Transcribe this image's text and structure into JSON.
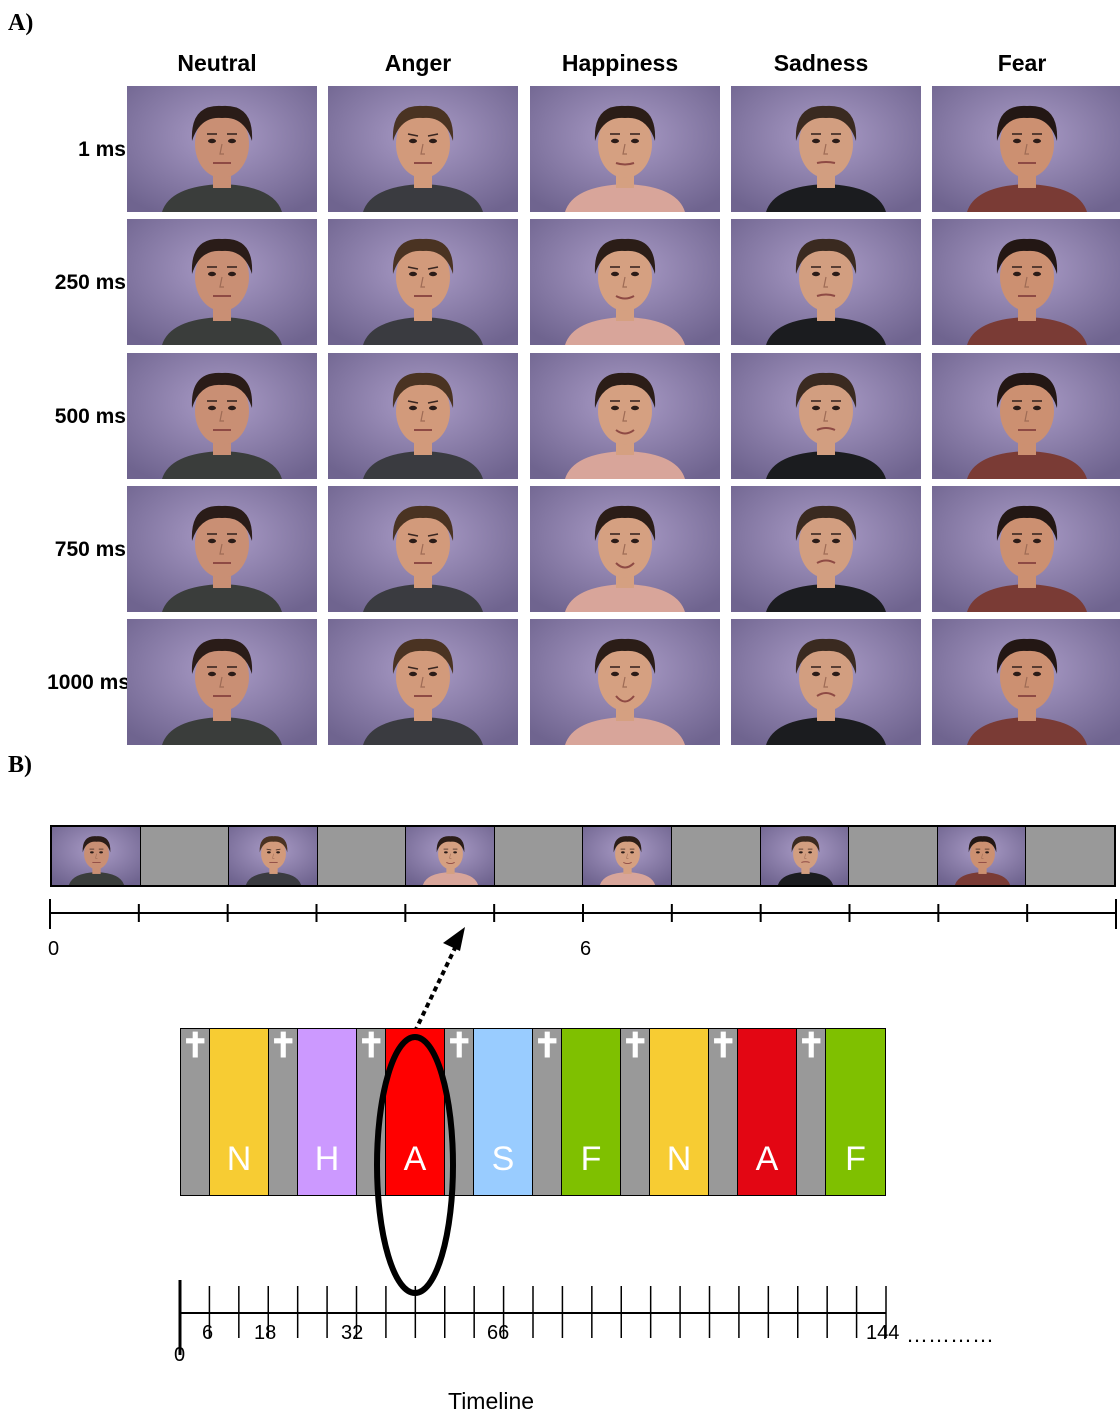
{
  "panel_a": {
    "label": "A)",
    "columns": [
      "Neutral",
      "Anger",
      "Happiness",
      "Sadness",
      "Fear"
    ],
    "rows": [
      "1 ms",
      "250 ms",
      "500 ms",
      "750 ms",
      "1000 ms"
    ]
  },
  "panel_b": {
    "label": "B)",
    "strip": {
      "cells": [
        "face",
        "blank",
        "face",
        "blank",
        "face",
        "blank",
        "face",
        "blank",
        "face",
        "blank",
        "face",
        "blank"
      ],
      "tick_labels": [
        {
          "value": 0,
          "text": "0"
        },
        {
          "value": 6,
          "text": "6"
        }
      ]
    },
    "sequence": {
      "fixation_symbol": "✝",
      "blocks": [
        {
          "type": "fix"
        },
        {
          "type": "emo",
          "letter": "N",
          "color": "#f7cc33"
        },
        {
          "type": "fix"
        },
        {
          "type": "emo",
          "letter": "H",
          "color": "#cc99ff"
        },
        {
          "type": "fix"
        },
        {
          "type": "emo",
          "letter": "A",
          "color": "#ff0000"
        },
        {
          "type": "fix"
        },
        {
          "type": "emo",
          "letter": "S",
          "color": "#99ccff"
        },
        {
          "type": "fix"
        },
        {
          "type": "emo",
          "letter": "F",
          "color": "#7fc000"
        },
        {
          "type": "fix"
        },
        {
          "type": "emo",
          "letter": "N",
          "color": "#f7cc33"
        },
        {
          "type": "fix"
        },
        {
          "type": "emo",
          "letter": "A",
          "color": "#e30613"
        },
        {
          "type": "fix"
        },
        {
          "type": "emo",
          "letter": "F",
          "color": "#7fc000"
        }
      ]
    },
    "timeline": {
      "tick_labels": [
        "0",
        "6",
        "18",
        "32",
        "66",
        "144"
      ],
      "ellipsis": "…………",
      "caption": "Timeline"
    }
  }
}
